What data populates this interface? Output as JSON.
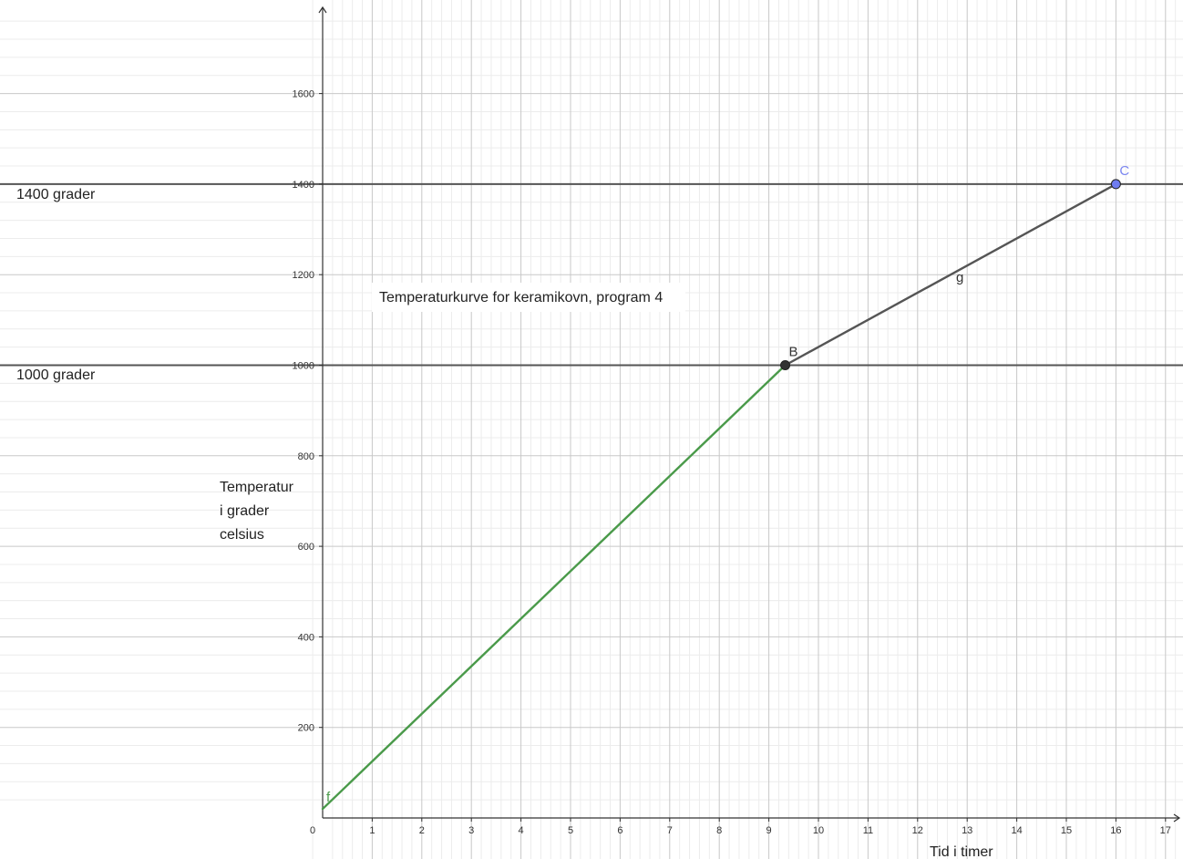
{
  "chart_data": {
    "type": "line",
    "title": "Temperaturkurve for keramikovn, program 4",
    "xlabel": "Tid i timer",
    "ylabel_lines": [
      "Temperatur",
      "i grader",
      "celsius"
    ],
    "xlim": [
      -0.2,
      17.3
    ],
    "ylim": [
      -15,
      1780
    ],
    "x_ticks": [
      0,
      1,
      2,
      3,
      4,
      5,
      6,
      7,
      8,
      9,
      10,
      11,
      12,
      13,
      14,
      15,
      16,
      17
    ],
    "y_ticks": [
      200,
      400,
      600,
      800,
      1000,
      1200,
      1400,
      1600
    ],
    "grid": true,
    "horizontal_lines": [
      {
        "y": 1000,
        "label": "1000 grader"
      },
      {
        "y": 1400,
        "label": "1400 grader"
      }
    ],
    "series": [
      {
        "name": "f",
        "color": "#4a9a4a",
        "x": [
          0,
          9.33
        ],
        "y": [
          20,
          1000
        ]
      },
      {
        "name": "g",
        "color": "#555555",
        "x": [
          9.33,
          16
        ],
        "y": [
          1000,
          1400
        ]
      }
    ],
    "points": [
      {
        "name": "B",
        "x": 9.33,
        "y": 1000,
        "color": "#333333",
        "label_color": "#333333"
      },
      {
        "name": "C",
        "x": 16,
        "y": 1400,
        "color": "#6f7cf0",
        "label_color": "#7b86f0"
      }
    ]
  },
  "colors": {
    "major_grid": "#c8c8c8",
    "minor_grid": "#ececec",
    "axis": "#333333",
    "hline": "#555555"
  }
}
